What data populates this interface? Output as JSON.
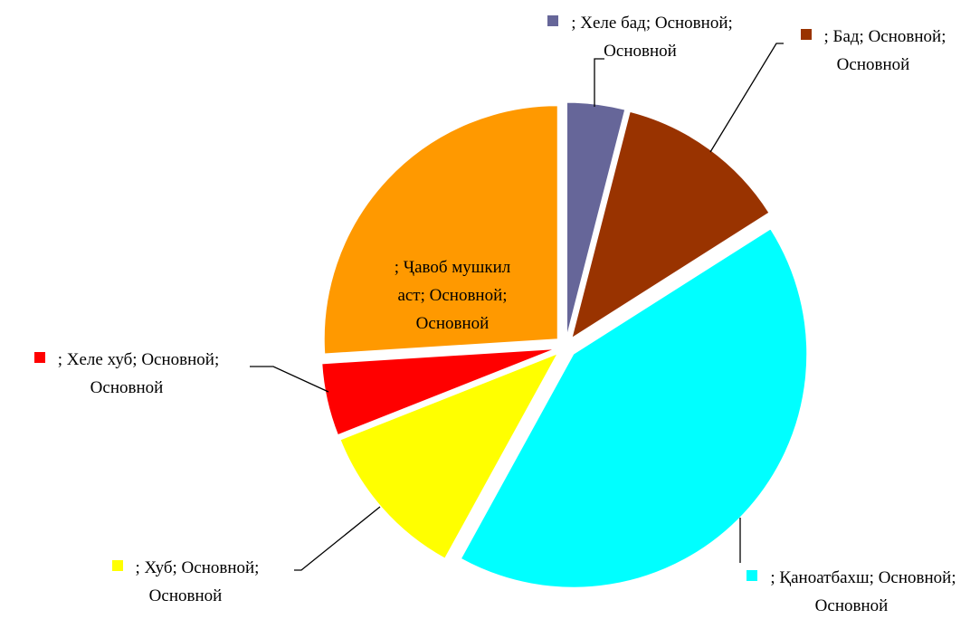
{
  "chart_data": {
    "type": "pie",
    "categories": [
      "; Хеле бад; Основной; Основной",
      "; Бад; Основной; Основной",
      "; Қаноатбахш; Основной; Основной",
      "; Хуб; Основной; Основной",
      "; Хеле хуб; Основной; Основной",
      "; Ҷавоб мушкил аст; Основной; Основной"
    ],
    "values": [
      4,
      12,
      42,
      11,
      5,
      26
    ],
    "colors": [
      "#666699",
      "#993300",
      "#00ffff",
      "#ffff00",
      "#ff0000",
      "#ff9900"
    ]
  }
}
